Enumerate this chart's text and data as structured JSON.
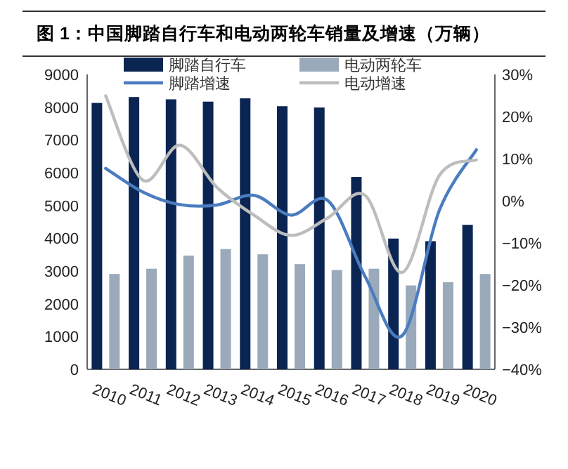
{
  "chart_data": {
    "type": "bar",
    "title": "图 1：中国脚踏自行车和电动两轮车销量及增速（万辆）",
    "categories": [
      "2010",
      "2011",
      "2012",
      "2013",
      "2014",
      "2015",
      "2016",
      "2017",
      "2018",
      "2019",
      "2020"
    ],
    "series": [
      {
        "name": "脚踏自行车",
        "color": "#0b2552",
        "values": [
          8130,
          8310,
          8240,
          8170,
          8270,
          8030,
          7990,
          5870,
          3990,
          3910,
          4410
        ]
      },
      {
        "name": "电动两轮车",
        "color": "#9aaabb",
        "values": [
          2910,
          3070,
          3470,
          3670,
          3510,
          3210,
          3030,
          3070,
          2560,
          2660,
          2910
        ]
      },
      {
        "name": "脚踏增速",
        "type": "line",
        "axis": "y2",
        "color": "#4a7cc0",
        "values": [
          7.7,
          2.1,
          -0.9,
          -1,
          1.3,
          -3.4,
          0,
          -18,
          -32,
          -2.3,
          12.1
        ]
      },
      {
        "name": "电动增速",
        "type": "line",
        "axis": "y2",
        "color": "#bdbdbd",
        "values": [
          24.9,
          4.9,
          13.2,
          3.2,
          -3.4,
          -8.2,
          -4,
          1.3,
          -17,
          6,
          9.7
        ]
      }
    ],
    "ylim": [
      0,
      9000
    ],
    "yticks": [
      0,
      1000,
      2000,
      3000,
      4000,
      5000,
      6000,
      7000,
      8000,
      9000
    ],
    "y2lim": [
      -40,
      30
    ],
    "y2ticks": [
      {
        "value": -40,
        "label": "−40%"
      },
      {
        "value": -30,
        "label": "−30%"
      },
      {
        "value": -20,
        "label": "−20%"
      },
      {
        "value": -10,
        "label": "−10%"
      },
      {
        "value": 0,
        "label": "0%"
      },
      {
        "value": 10,
        "label": "10%"
      },
      {
        "value": 20,
        "label": "20%"
      },
      {
        "value": 30,
        "label": "30%"
      }
    ],
    "legend": "top",
    "grid": false,
    "marker": "none",
    "line_style": "solid"
  }
}
